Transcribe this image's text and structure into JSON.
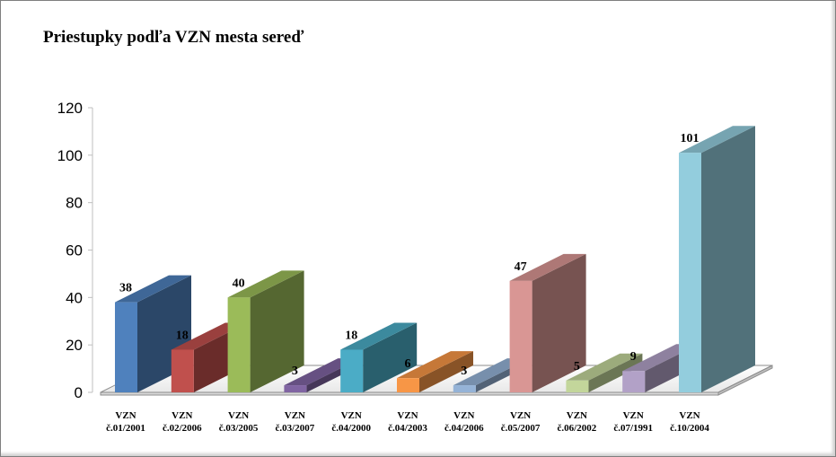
{
  "chart_data": {
    "type": "bar",
    "title": "Priestupky podľa VZN mesta sereď",
    "xlabel": "",
    "ylabel": "",
    "ylim": [
      0,
      120
    ],
    "yticks": [
      "0",
      "20",
      "40",
      "60",
      "80",
      "100",
      "120"
    ],
    "grid": false,
    "legend": "none",
    "categories": [
      [
        "VZN",
        "č.01/2001"
      ],
      [
        "VZN",
        "č.02/2006"
      ],
      [
        "VZN",
        "č.03/2005"
      ],
      [
        "VZN",
        "č.03/2007"
      ],
      [
        "VZN",
        "č.04/2000"
      ],
      [
        "VZN",
        "č.04/2003"
      ],
      [
        "VZN",
        "č.04/2006"
      ],
      [
        "VZN",
        "č.05/2007"
      ],
      [
        "VZN",
        "č.06/2002"
      ],
      [
        "VZN",
        "č.07/1991"
      ],
      [
        "VZN",
        "č.10/2004"
      ]
    ],
    "values": [
      38,
      18,
      40,
      3,
      18,
      6,
      3,
      47,
      5,
      9,
      101
    ],
    "data_labels": [
      "38",
      "18",
      "40",
      "3",
      "18",
      "6",
      "3",
      "47",
      "5",
      "9",
      "101"
    ],
    "colors": [
      "#4F81BD",
      "#C0504D",
      "#9BBB59",
      "#8064A2",
      "#4BACC6",
      "#F79646",
      "#95B3D7",
      "#D99694",
      "#C3D69B",
      "#B2A1C7",
      "#93CDDD"
    ]
  }
}
